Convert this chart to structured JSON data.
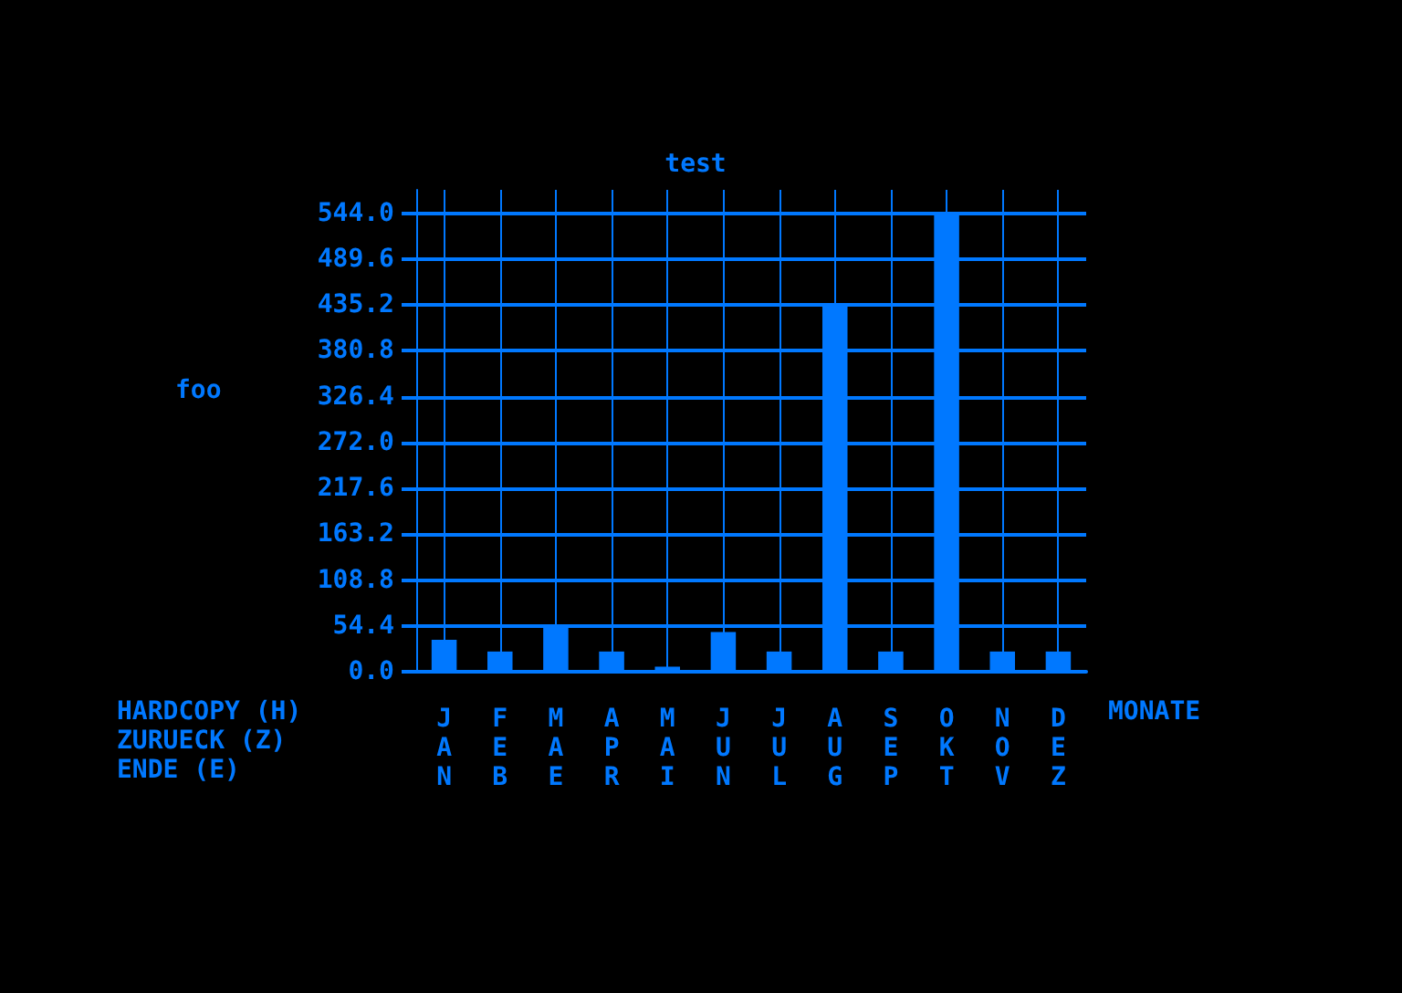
{
  "chart_data": {
    "type": "bar",
    "title": "test",
    "xlabel": "MONATE",
    "ylabel": "foo",
    "categories": [
      "JAN",
      "FEB",
      "MAE",
      "APR",
      "MAI",
      "JUN",
      "JUL",
      "AUG",
      "SEP",
      "OKT",
      "NOV",
      "DEZ"
    ],
    "values": [
      38,
      24,
      54.4,
      24,
      6,
      47,
      24,
      435.2,
      24,
      544,
      24,
      24
    ],
    "color": "#0078ff",
    "ylim": [
      0,
      572
    ],
    "yticks": [
      {
        "value": 0,
        "label": "0.0"
      },
      54.4,
      108.8,
      163.2,
      217.6,
      {
        "value": 272,
        "label": "272.0"
      },
      326.4,
      380.8,
      435.2,
      489.6,
      {
        "value": 544,
        "label": "544.0"
      }
    ],
    "grid": true,
    "annotations": [
      "HARDCOPY (H)",
      "ZURUECK (Z)",
      "ENDE (E)"
    ]
  }
}
